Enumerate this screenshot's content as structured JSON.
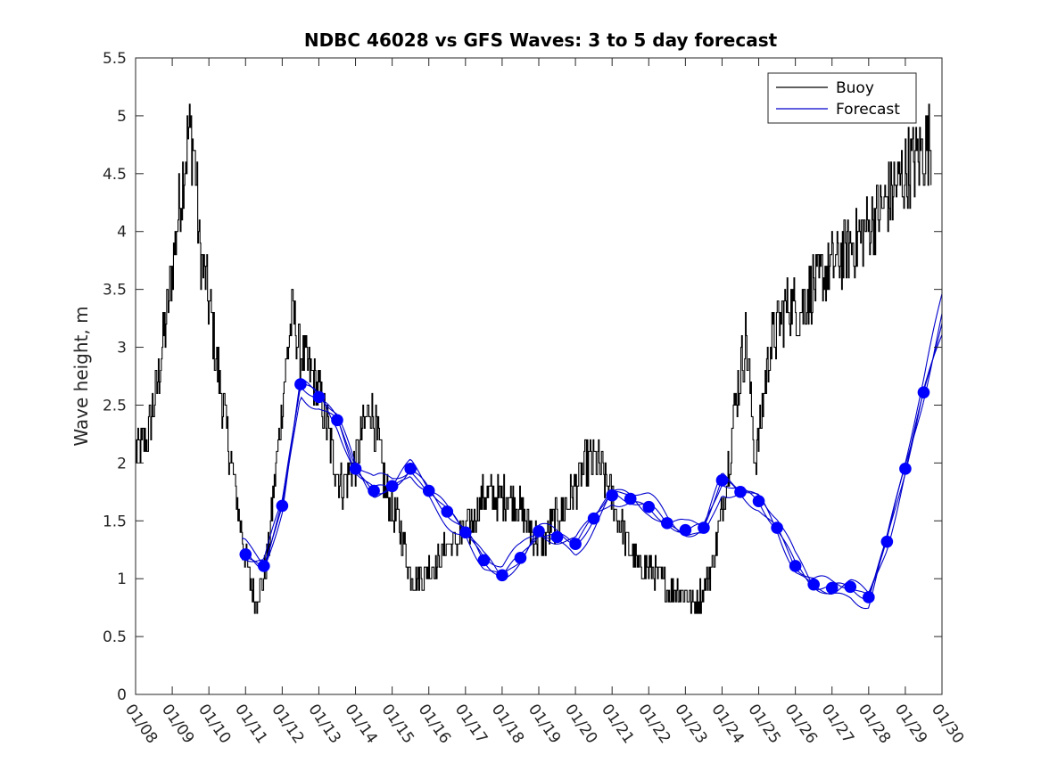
{
  "chart_data": {
    "type": "line",
    "title": "NDBC 46028 vs GFS Waves: 3 to 5 day forecast",
    "xlabel": "",
    "ylabel": "Wave height, m",
    "xlim": [
      0,
      22
    ],
    "ylim": [
      0,
      5.5
    ],
    "x_unit": "days since 01/08",
    "x_ticks": [
      0,
      1,
      2,
      3,
      4,
      5,
      6,
      7,
      8,
      9,
      10,
      11,
      12,
      13,
      14,
      15,
      16,
      17,
      18,
      19,
      20,
      21,
      22
    ],
    "x_tick_labels": [
      "01/08",
      "01/09",
      "01/10",
      "01/11",
      "01/12",
      "01/13",
      "01/14",
      "01/15",
      "01/16",
      "01/17",
      "01/18",
      "01/19",
      "01/20",
      "01/21",
      "01/22",
      "01/23",
      "01/24",
      "01/25",
      "01/26",
      "01/27",
      "01/28",
      "01/29",
      "01/30"
    ],
    "y_ticks": [
      0,
      0.5,
      1,
      1.5,
      2,
      2.5,
      3,
      3.5,
      4,
      4.5,
      5,
      5.5
    ],
    "y_tick_labels": [
      "0",
      "0.5",
      "1",
      "1.5",
      "2",
      "2.5",
      "3",
      "3.5",
      "4",
      "4.5",
      "5",
      "5.5"
    ],
    "grid": false,
    "legend": {
      "position": "top-right",
      "entries": [
        {
          "label": "Buoy",
          "color": "#000000"
        },
        {
          "label": "Forecast",
          "color": "#0000cc"
        }
      ]
    },
    "colors": {
      "buoy": "#000000",
      "forecast": "#0000cc",
      "marker": "#0000ff"
    },
    "series": [
      {
        "name": "Buoy",
        "x": [
          0,
          0.3,
          0.6,
          0.9,
          1.1,
          1.3,
          1.45,
          1.6,
          1.75,
          1.9,
          2.2,
          2.6,
          2.85,
          3.05,
          3.25,
          3.4,
          3.6,
          3.9,
          4.15,
          4.3,
          4.45,
          4.6,
          4.75,
          4.9,
          5.1,
          5.35,
          5.6,
          5.8,
          6.0,
          6.2,
          6.4,
          6.6,
          6.8,
          6.95,
          7.15,
          7.3,
          7.45,
          7.6,
          7.8,
          8.0,
          8.2,
          8.45,
          8.7,
          8.95,
          9.2,
          9.45,
          9.7,
          9.95,
          10.2,
          10.5,
          10.8,
          11.1,
          11.4,
          11.7,
          12.0,
          12.3,
          12.6,
          12.9,
          13.2,
          13.5,
          13.75,
          14.0,
          14.3,
          14.6,
          14.9,
          15.2,
          15.5,
          15.8,
          16.1,
          16.4,
          16.65,
          16.9,
          17.1,
          17.3,
          17.55,
          17.8,
          18.1,
          18.4,
          18.7,
          19.0,
          19.3,
          19.6,
          19.9,
          20.15,
          20.35,
          20.55,
          20.75,
          20.95,
          21.2,
          21.45,
          21.7
        ],
        "values": [
          2.1,
          2.2,
          2.7,
          3.4,
          4.0,
          4.5,
          4.9,
          4.7,
          3.8,
          3.6,
          2.9,
          2.0,
          1.5,
          1.1,
          0.8,
          0.9,
          1.2,
          2.2,
          3.0,
          3.3,
          3.0,
          2.9,
          2.8,
          2.7,
          2.5,
          2.1,
          1.8,
          1.9,
          2.0,
          2.3,
          2.5,
          2.2,
          1.8,
          1.6,
          1.5,
          1.3,
          1.1,
          1.0,
          1.0,
          1.1,
          1.1,
          1.3,
          1.3,
          1.4,
          1.5,
          1.7,
          1.7,
          1.7,
          1.7,
          1.6,
          1.4,
          1.3,
          1.5,
          1.6,
          1.8,
          2.0,
          2.0,
          1.8,
          1.5,
          1.2,
          1.1,
          1.1,
          1.0,
          0.9,
          0.9,
          0.8,
          0.9,
          1.2,
          1.8,
          2.6,
          3.1,
          2.0,
          2.5,
          3.0,
          3.2,
          3.4,
          3.3,
          3.5,
          3.6,
          3.7,
          3.8,
          3.9,
          4.0,
          4.1,
          4.2,
          4.3,
          4.4,
          4.5,
          4.6,
          4.7,
          4.8
        ]
      },
      {
        "name": "Forecast",
        "x": [
          3.0,
          3.5,
          4.0,
          4.5,
          5.0,
          5.5,
          6.0,
          6.5,
          7.0,
          7.5,
          8.0,
          8.5,
          9.0,
          9.5,
          10.0,
          10.5,
          11.0,
          11.5,
          12.0,
          12.5,
          13.0,
          13.5,
          14.0,
          14.5,
          15.0,
          15.5,
          16.0,
          16.5,
          17.0,
          17.5,
          18.0,
          18.5,
          19.0,
          19.5,
          20.0,
          20.5,
          21.0,
          21.5
        ],
        "values": [
          1.21,
          1.11,
          1.63,
          2.68,
          2.57,
          2.37,
          1.95,
          1.76,
          1.8,
          1.95,
          1.76,
          1.58,
          1.4,
          1.16,
          1.03,
          1.18,
          1.41,
          1.36,
          1.3,
          1.52,
          1.72,
          1.69,
          1.62,
          1.48,
          1.42,
          1.44,
          1.85,
          1.75,
          1.67,
          1.44,
          1.11,
          0.95,
          0.92,
          0.93,
          0.84,
          1.32,
          1.95,
          2.61
        ]
      }
    ]
  }
}
